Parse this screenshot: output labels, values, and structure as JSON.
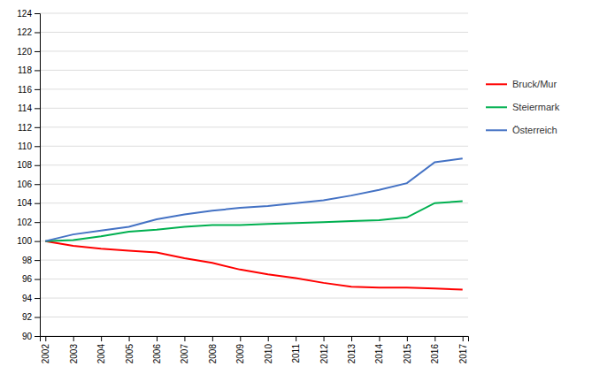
{
  "chart_data": {
    "type": "line",
    "x": [
      2002,
      2003,
      2004,
      2005,
      2006,
      2007,
      2008,
      2009,
      2010,
      2011,
      2012,
      2013,
      2014,
      2015,
      2016,
      2017
    ],
    "xlim": [
      2001.8,
      2017.2
    ],
    "xticks": [
      2002,
      2003,
      2004,
      2005,
      2006,
      2007,
      2008,
      2009,
      2010,
      2011,
      2012,
      2013,
      2014,
      2015,
      2016,
      2017
    ],
    "ylim": [
      90,
      124
    ],
    "yticks": [
      90,
      92,
      94,
      96,
      98,
      100,
      102,
      104,
      106,
      108,
      110,
      112,
      114,
      116,
      118,
      120,
      122,
      124
    ],
    "grid": true,
    "legend": "right",
    "series": [
      {
        "name": "Bruck/Mur",
        "color": "#ff0000",
        "values": [
          100.0,
          99.5,
          99.2,
          99.0,
          98.8,
          98.2,
          97.7,
          97.0,
          96.5,
          96.1,
          95.6,
          95.2,
          95.1,
          95.1,
          95.0,
          94.9
        ]
      },
      {
        "name": "Steiermark",
        "color": "#00b050",
        "values": [
          100.0,
          100.1,
          100.5,
          101.0,
          101.2,
          101.5,
          101.7,
          101.7,
          101.8,
          101.9,
          102.0,
          102.1,
          102.2,
          102.5,
          104.0,
          104.2
        ]
      },
      {
        "name": "Österreich",
        "color": "#4472c4",
        "values": [
          100.0,
          100.7,
          101.1,
          101.5,
          102.3,
          102.8,
          103.2,
          103.5,
          103.7,
          104.0,
          104.3,
          104.8,
          105.4,
          106.1,
          108.3,
          108.7
        ]
      }
    ]
  }
}
